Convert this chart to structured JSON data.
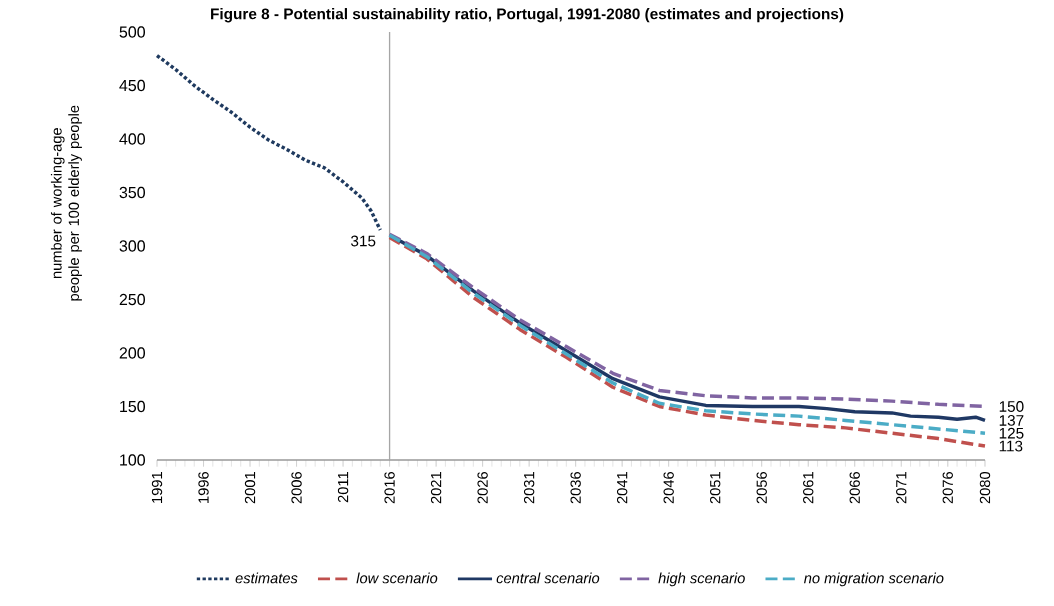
{
  "chart_data": {
    "type": "line",
    "title": "Figure 8 - Potential sustainability ratio, Portugal, 1991-2080 (estimates and projections)",
    "ylabel": "number of working-age people per 100 elderly people",
    "xlim": [
      1991,
      2080
    ],
    "xticks": [
      1991,
      1996,
      2001,
      2006,
      2011,
      2016,
      2021,
      2026,
      2031,
      2036,
      2041,
      2046,
      2051,
      2056,
      2061,
      2066,
      2071,
      2076,
      2080
    ],
    "ylim": [
      100,
      500
    ],
    "yticks": [
      100,
      150,
      200,
      250,
      300,
      350,
      400,
      450,
      500
    ],
    "grid": false,
    "legend": "bottom",
    "ref_lines": [
      {
        "axis": "x",
        "value": 2016,
        "color": "#a6a6a6"
      }
    ],
    "series": [
      {
        "name": "estimates",
        "color": "#1f3a5f",
        "line_style": "dotted",
        "x": [
          1991,
          1993,
          1995,
          1997,
          1999,
          2001,
          2003,
          2005,
          2007,
          2009,
          2011,
          2013,
          2014,
          2015
        ],
        "values": [
          478,
          465,
          450,
          437,
          425,
          411,
          399,
          390,
          380,
          373,
          360,
          345,
          333,
          315
        ],
        "value_labels": [
          null,
          null,
          null,
          null,
          null,
          null,
          null,
          null,
          null,
          null,
          null,
          null,
          null,
          "315"
        ]
      },
      {
        "name": "low scenario",
        "color": "#c0504d",
        "line_style": "dashed",
        "x": [
          2016,
          2020,
          2025,
          2030,
          2035,
          2040,
          2045,
          2050,
          2055,
          2060,
          2065,
          2070,
          2075,
          2080
        ],
        "values": [
          308,
          288,
          252,
          222,
          196,
          168,
          150,
          142,
          137,
          133,
          130,
          125,
          120,
          113
        ],
        "value_labels": [
          null,
          null,
          null,
          null,
          null,
          null,
          null,
          null,
          null,
          null,
          null,
          null,
          null,
          "113"
        ]
      },
      {
        "name": "central scenario",
        "color": "#1f3864",
        "line_style": "solid",
        "x": [
          2016,
          2020,
          2025,
          2030,
          2035,
          2040,
          2045,
          2050,
          2055,
          2060,
          2063,
          2066,
          2070,
          2072,
          2075,
          2077,
          2079,
          2080
        ],
        "values": [
          310,
          291,
          258,
          228,
          202,
          176,
          159,
          151,
          150,
          150,
          148,
          145,
          144,
          141,
          140,
          138,
          140,
          137
        ],
        "value_labels": [
          null,
          null,
          null,
          null,
          null,
          null,
          null,
          null,
          null,
          null,
          null,
          null,
          null,
          null,
          null,
          null,
          null,
          "137"
        ]
      },
      {
        "name": "high scenario",
        "color": "#8064a2",
        "line_style": "dashed",
        "x": [
          2016,
          2020,
          2025,
          2030,
          2035,
          2040,
          2045,
          2050,
          2055,
          2060,
          2065,
          2070,
          2075,
          2080
        ],
        "values": [
          311,
          293,
          261,
          231,
          206,
          181,
          165,
          160,
          158,
          158,
          157,
          155,
          152,
          150
        ],
        "value_labels": [
          null,
          null,
          null,
          null,
          null,
          null,
          null,
          null,
          null,
          null,
          null,
          null,
          null,
          "150"
        ]
      },
      {
        "name": "no migration scenario",
        "color": "#4bacc6",
        "line_style": "dashed",
        "x": [
          2016,
          2020,
          2025,
          2030,
          2035,
          2040,
          2045,
          2050,
          2055,
          2060,
          2065,
          2070,
          2075,
          2080
        ],
        "values": [
          310,
          290,
          256,
          226,
          199,
          172,
          153,
          146,
          143,
          141,
          137,
          133,
          129,
          125
        ],
        "value_labels": [
          null,
          null,
          null,
          null,
          null,
          null,
          null,
          null,
          null,
          null,
          null,
          null,
          null,
          "125"
        ]
      }
    ]
  }
}
